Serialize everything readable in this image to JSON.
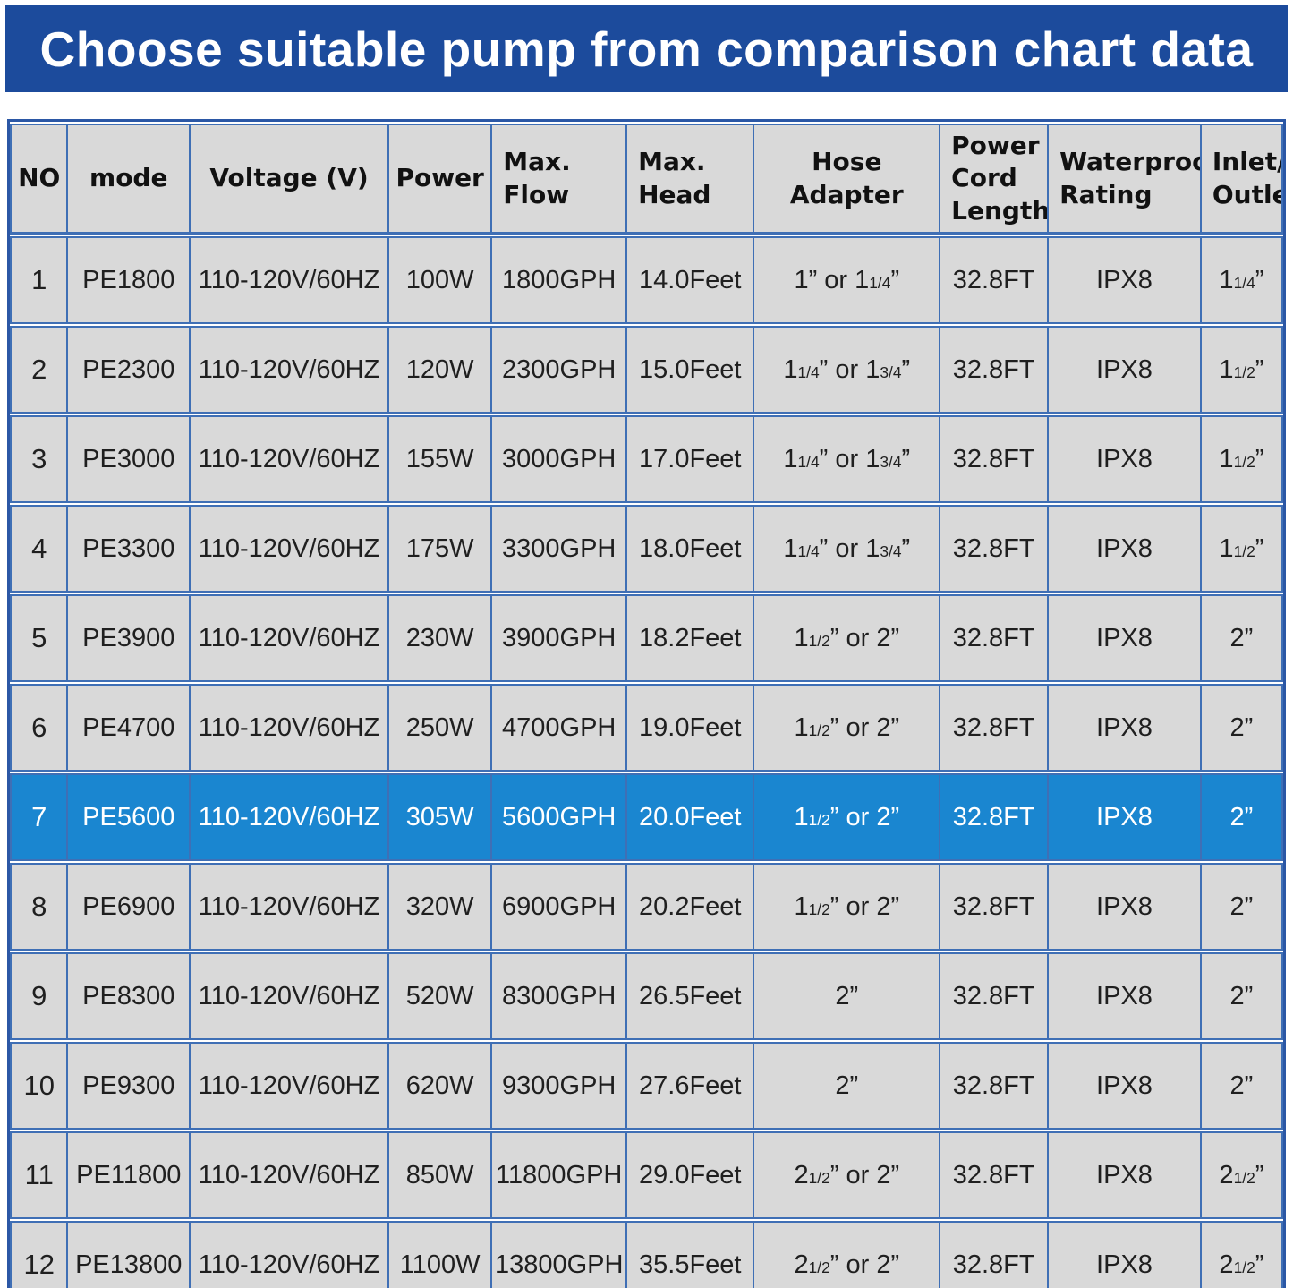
{
  "banner": {
    "title": "Choose suitable pump from comparison chart data"
  },
  "colors": {
    "banner_bg": "#1c4b9c",
    "banner_text": "#ffffff",
    "cell_bg": "#d9d9d9",
    "cell_text": "#1f1f1f",
    "grid": "#3f6fb5",
    "outer_border": "#2b57a5",
    "highlight_bg": "#1a86d0",
    "highlight_text": "#ffffff"
  },
  "table": {
    "columns": [
      {
        "label": "NO",
        "align": "center"
      },
      {
        "label": "mode",
        "align": "center"
      },
      {
        "label": "Voltage (V)",
        "align": "center"
      },
      {
        "label": "Power",
        "align": "center"
      },
      {
        "label": "Max.\nFlow",
        "align": "left"
      },
      {
        "label": "Max.\nHead",
        "align": "left"
      },
      {
        "label": "Hose Adapter",
        "align": "center"
      },
      {
        "label": "Power\nCord\nLength",
        "align": "left"
      },
      {
        "label": "Waterproof\nRating",
        "align": "left"
      },
      {
        "label": "Inlet/\nOutlet",
        "align": "left"
      }
    ],
    "highlight_row_index": 6,
    "rows": [
      [
        "1",
        "PE1800",
        "110-120V/60HZ",
        "100W",
        "1800GPH",
        "14.0Feet",
        "1” or 1{1/4}”",
        "32.8FT",
        "IPX8",
        "1{1/4}”"
      ],
      [
        "2",
        "PE2300",
        "110-120V/60HZ",
        "120W",
        "2300GPH",
        "15.0Feet",
        "1{1/4}” or 1{3/4}”",
        "32.8FT",
        "IPX8",
        "1{1/2}”"
      ],
      [
        "3",
        "PE3000",
        "110-120V/60HZ",
        "155W",
        "3000GPH",
        "17.0Feet",
        "1{1/4}” or 1{3/4}”",
        "32.8FT",
        "IPX8",
        "1{1/2}”"
      ],
      [
        "4",
        "PE3300",
        "110-120V/60HZ",
        "175W",
        "3300GPH",
        "18.0Feet",
        "1{1/4}” or 1{3/4}”",
        "32.8FT",
        "IPX8",
        "1{1/2}”"
      ],
      [
        "5",
        "PE3900",
        "110-120V/60HZ",
        "230W",
        "3900GPH",
        "18.2Feet",
        "1{1/2}” or 2”",
        "32.8FT",
        "IPX8",
        "2”"
      ],
      [
        "6",
        "PE4700",
        "110-120V/60HZ",
        "250W",
        "4700GPH",
        "19.0Feet",
        "1{1/2}” or 2”",
        "32.8FT",
        "IPX8",
        "2”"
      ],
      [
        "7",
        "PE5600",
        "110-120V/60HZ",
        "305W",
        "5600GPH",
        "20.0Feet",
        "1{1/2}” or 2”",
        "32.8FT",
        "IPX8",
        "2”"
      ],
      [
        "8",
        "PE6900",
        "110-120V/60HZ",
        "320W",
        "6900GPH",
        "20.2Feet",
        "1{1/2}” or 2”",
        "32.8FT",
        "IPX8",
        "2”"
      ],
      [
        "9",
        "PE8300",
        "110-120V/60HZ",
        "520W",
        "8300GPH",
        "26.5Feet",
        "2”",
        "32.8FT",
        "IPX8",
        "2”"
      ],
      [
        "10",
        "PE9300",
        "110-120V/60HZ",
        "620W",
        "9300GPH",
        "27.6Feet",
        "2”",
        "32.8FT",
        "IPX8",
        "2”"
      ],
      [
        "11",
        "PE11800",
        "110-120V/60HZ",
        "850W",
        "11800GPH",
        "29.0Feet",
        "2{1/2}” or 2”",
        "32.8FT",
        "IPX8",
        "2{1/2}”"
      ],
      [
        "12",
        "PE13800",
        "110-120V/60HZ",
        "1100W",
        "13800GPH",
        "35.5Feet",
        "2{1/2}” or 2”",
        "32.8FT",
        "IPX8",
        "2{1/2}”"
      ]
    ]
  }
}
